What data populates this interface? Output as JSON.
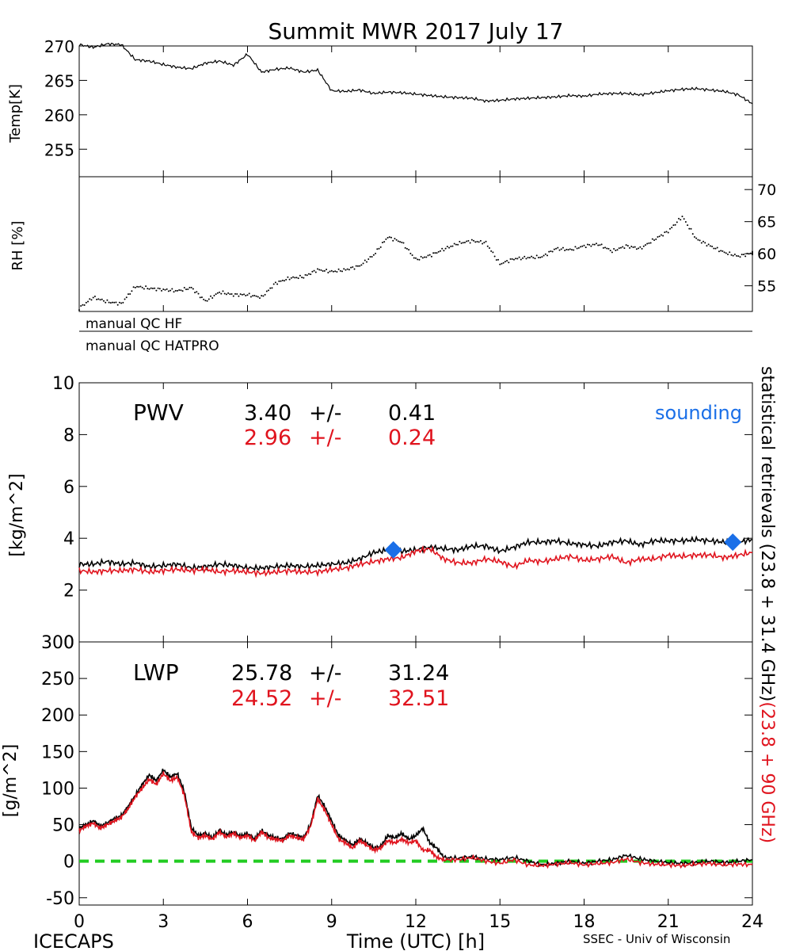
{
  "title": "Summit MWR 2017 July 17",
  "footer": {
    "left": "ICECAPS",
    "center": "Time (UTC) [h]",
    "right": "SSEC - Univ of Wisconsin"
  },
  "side_label": {
    "black_part": "statistical retrievals (23.8 + 31.4 GHz)",
    "red_part": "(23.8 + 90 GHz)"
  },
  "qc_flags": [
    "manual QC HF",
    "manual QC HATPRO"
  ],
  "colors": {
    "retrieval_23_31": "#000000",
    "retrieval_23_90": "#e0141e",
    "sounding": "#1a6fe8",
    "zero_line": "#22cc22"
  },
  "chart_data": [
    {
      "type": "line",
      "id": "temp",
      "ylabel": "Temp[K]",
      "xlim": [
        0,
        24
      ],
      "ylim": [
        251,
        270
      ],
      "yticks": [
        255,
        260,
        265,
        270
      ],
      "series": [
        {
          "color": "#000000",
          "x": [
            0,
            0.5,
            1,
            1.5,
            2,
            2.5,
            3,
            3.5,
            4,
            4.5,
            5,
            5.5,
            6,
            6.5,
            7,
            7.5,
            8,
            8.5,
            9,
            9.5,
            10,
            10.5,
            11,
            11.5,
            12,
            12.5,
            13,
            13.5,
            14,
            14.5,
            15,
            15.5,
            16,
            16.5,
            17,
            17.5,
            18,
            18.5,
            19,
            19.5,
            20,
            20.5,
            21,
            21.5,
            22,
            22.5,
            23,
            23.5,
            24
          ],
          "y": [
            270.2,
            269.8,
            270.3,
            270.2,
            268,
            267.8,
            267.3,
            266.9,
            266.7,
            267.5,
            267.8,
            267.2,
            268.8,
            266.2,
            266.6,
            266.8,
            266.2,
            266.5,
            263.5,
            263.4,
            263.6,
            263.1,
            263.3,
            263.2,
            263.0,
            262.8,
            262.6,
            262.5,
            262.4,
            262.0,
            262.1,
            262.3,
            262.4,
            262.5,
            262.6,
            262.8,
            262.7,
            263.0,
            263.1,
            263.1,
            262.9,
            263.2,
            263.5,
            263.7,
            263.8,
            263.6,
            263.4,
            262.9,
            261.6
          ]
        }
      ]
    },
    {
      "type": "scatter",
      "id": "rh",
      "ylabel": "RH [%]",
      "xlim": [
        0,
        24
      ],
      "ylim": [
        51,
        72
      ],
      "yticks": [
        55,
        60,
        65,
        70
      ],
      "series": [
        {
          "color": "#000000",
          "x": [
            0,
            0.5,
            1,
            1.5,
            2,
            2.5,
            3,
            3.5,
            4,
            4.5,
            5,
            5.5,
            6,
            6.5,
            7,
            7.5,
            8,
            8.5,
            9,
            9.5,
            10,
            10.5,
            11,
            11.5,
            12,
            12.5,
            13,
            13.5,
            14,
            14.5,
            15,
            15.5,
            16,
            16.5,
            17,
            17.5,
            18,
            18.5,
            19,
            19.5,
            20,
            20.5,
            21,
            21.5,
            22,
            22.5,
            23,
            23.5,
            24
          ],
          "y": [
            51.5,
            53.2,
            52.5,
            52.2,
            54.9,
            54.6,
            54.4,
            54.2,
            54.7,
            52.6,
            54.0,
            53.6,
            53.6,
            53.2,
            55.4,
            56.2,
            56.4,
            57.5,
            57.2,
            57.5,
            58.1,
            59.8,
            62.6,
            61.8,
            59.1,
            59.7,
            60.7,
            61.6,
            62.0,
            61.7,
            58.4,
            59.2,
            59.4,
            59.5,
            60.8,
            60.6,
            61.2,
            61.5,
            60.4,
            61.2,
            60.8,
            62.2,
            63.5,
            65.8,
            62.3,
            61.2,
            60.2,
            59.6,
            60.1
          ]
        }
      ]
    },
    {
      "type": "line",
      "id": "pwv",
      "ylabel": "[kg/m^2]",
      "xlim": [
        0,
        24
      ],
      "ylim": [
        0,
        10
      ],
      "yticks": [
        0,
        2,
        4,
        6,
        8,
        10
      ],
      "label": "PWV",
      "stats": [
        {
          "mean": "3.40",
          "pm": "+/-",
          "sd": "0.41",
          "color": "#000000"
        },
        {
          "mean": "2.96",
          "pm": "+/-",
          "sd": "0.24",
          "color": "#e0141e"
        }
      ],
      "sounding_label": "sounding",
      "sounding": {
        "x": [
          11.2,
          23.3
        ],
        "y": [
          3.55,
          3.85
        ],
        "color": "#1a6fe8"
      },
      "series": [
        {
          "color": "#000000",
          "x": [
            0,
            0.5,
            1,
            1.5,
            2,
            2.5,
            3,
            3.5,
            4,
            4.5,
            5,
            5.5,
            6,
            6.5,
            7,
            7.5,
            8,
            8.5,
            9,
            9.5,
            10,
            10.5,
            11,
            11.5,
            12,
            12.5,
            13,
            13.5,
            14,
            14.5,
            15,
            15.5,
            16,
            16.5,
            17,
            17.5,
            18,
            18.5,
            19,
            19.5,
            20,
            20.5,
            21,
            21.5,
            22,
            22.5,
            23,
            23.5,
            24
          ],
          "y": [
            3.0,
            3.0,
            3.1,
            3.0,
            3.05,
            2.9,
            2.95,
            3.0,
            2.85,
            2.9,
            3.0,
            2.95,
            2.85,
            2.85,
            2.9,
            2.95,
            2.9,
            2.95,
            3.0,
            3.05,
            3.2,
            3.45,
            3.55,
            3.5,
            3.55,
            3.65,
            3.6,
            3.55,
            3.7,
            3.7,
            3.5,
            3.65,
            3.85,
            3.85,
            3.9,
            3.8,
            3.75,
            3.7,
            3.85,
            3.9,
            3.75,
            3.9,
            3.9,
            3.9,
            3.95,
            3.9,
            3.85,
            3.85,
            3.95
          ]
        },
        {
          "color": "#e0141e",
          "x": [
            0,
            0.5,
            1,
            1.5,
            2,
            2.5,
            3,
            3.5,
            4,
            4.5,
            5,
            5.5,
            6,
            6.5,
            7,
            7.5,
            8,
            8.5,
            9,
            9.5,
            10,
            10.5,
            11,
            11.5,
            12,
            12.5,
            13,
            13.5,
            14,
            14.5,
            15,
            15.5,
            16,
            16.5,
            17,
            17.5,
            18,
            18.5,
            19,
            19.5,
            20,
            20.5,
            21,
            21.5,
            22,
            22.5,
            23,
            23.5,
            24
          ],
          "y": [
            2.75,
            2.7,
            2.75,
            2.75,
            2.8,
            2.7,
            2.75,
            2.8,
            2.75,
            2.8,
            2.7,
            2.75,
            2.7,
            2.65,
            2.7,
            2.75,
            2.7,
            2.7,
            2.8,
            2.85,
            3.0,
            3.1,
            3.2,
            3.25,
            3.5,
            3.6,
            3.2,
            3.05,
            3.05,
            3.2,
            3.1,
            2.9,
            3.15,
            3.1,
            3.2,
            3.3,
            3.15,
            3.2,
            3.3,
            3.05,
            3.2,
            3.2,
            3.35,
            3.3,
            3.35,
            3.35,
            3.25,
            3.35,
            3.45
          ]
        }
      ]
    },
    {
      "type": "line",
      "id": "lwp",
      "ylabel": "[g/m^2]",
      "xlim": [
        0,
        24
      ],
      "ylim": [
        -60,
        300
      ],
      "yticks": [
        -50,
        0,
        50,
        100,
        150,
        200,
        250,
        300
      ],
      "xticks": [
        0,
        3,
        6,
        9,
        12,
        15,
        18,
        21,
        24
      ],
      "label": "LWP",
      "stats": [
        {
          "mean": "25.78",
          "pm": "+/-",
          "sd": "31.24",
          "color": "#000000"
        },
        {
          "mean": "24.52",
          "pm": "+/-",
          "sd": "32.51",
          "color": "#e0141e"
        }
      ],
      "zero_line": 0,
      "series": [
        {
          "color": "#000000",
          "x": [
            0,
            0.25,
            0.5,
            0.75,
            1,
            1.25,
            1.5,
            1.75,
            2,
            2.25,
            2.5,
            2.75,
            3,
            3.25,
            3.5,
            3.75,
            4,
            4.25,
            4.5,
            4.75,
            5,
            5.25,
            5.5,
            5.75,
            6,
            6.25,
            6.5,
            6.75,
            7,
            7.25,
            7.5,
            7.75,
            8,
            8.25,
            8.5,
            8.75,
            9,
            9.25,
            9.5,
            9.75,
            10,
            10.25,
            10.5,
            10.75,
            11,
            11.25,
            11.5,
            11.75,
            12,
            12.25,
            12.5,
            12.75,
            13,
            13.5,
            14,
            14.5,
            15,
            15.5,
            16,
            16.5,
            17,
            17.5,
            18,
            18.5,
            19,
            19.5,
            20,
            20.5,
            21,
            21.5,
            22,
            22.5,
            23,
            23.5,
            24
          ],
          "y": [
            45,
            50,
            55,
            48,
            52,
            58,
            62,
            75,
            90,
            105,
            118,
            110,
            125,
            115,
            120,
            95,
            45,
            35,
            38,
            32,
            42,
            36,
            40,
            34,
            38,
            30,
            42,
            35,
            32,
            30,
            38,
            35,
            32,
            50,
            90,
            75,
            55,
            35,
            28,
            22,
            30,
            25,
            18,
            20,
            35,
            32,
            38,
            30,
            35,
            45,
            25,
            18,
            5,
            4,
            6,
            3,
            2,
            5,
            0,
            -5,
            -3,
            0,
            -3,
            0,
            2,
            8,
            3,
            0,
            -2,
            -3,
            -2,
            0,
            -2,
            0,
            2
          ]
        },
        {
          "color": "#e0141e",
          "x": [
            0,
            0.25,
            0.5,
            0.75,
            1,
            1.25,
            1.5,
            1.75,
            2,
            2.25,
            2.5,
            2.75,
            3,
            3.25,
            3.5,
            3.75,
            4,
            4.25,
            4.5,
            4.75,
            5,
            5.25,
            5.5,
            5.75,
            6,
            6.25,
            6.5,
            6.75,
            7,
            7.25,
            7.5,
            7.75,
            8,
            8.25,
            8.5,
            8.75,
            9,
            9.25,
            9.5,
            9.75,
            10,
            10.25,
            10.5,
            10.75,
            11,
            11.25,
            11.5,
            11.75,
            12,
            12.25,
            12.5,
            12.75,
            13,
            13.5,
            14,
            14.5,
            15,
            15.5,
            16,
            16.5,
            17,
            17.5,
            18,
            18.5,
            19,
            19.5,
            20,
            20.5,
            21,
            21.5,
            22,
            22.5,
            23,
            23.5,
            24
          ],
          "y": [
            42,
            48,
            52,
            45,
            50,
            55,
            60,
            72,
            88,
            100,
            112,
            105,
            120,
            110,
            115,
            90,
            40,
            32,
            35,
            30,
            40,
            33,
            38,
            32,
            35,
            28,
            40,
            32,
            30,
            28,
            35,
            32,
            30,
            48,
            85,
            70,
            50,
            30,
            25,
            18,
            28,
            22,
            15,
            18,
            28,
            25,
            30,
            25,
            28,
            15,
            15,
            5,
            2,
            2,
            5,
            0,
            -3,
            2,
            -5,
            -6,
            -4,
            -2,
            -5,
            -3,
            -2,
            3,
            -2,
            -4,
            -5,
            -6,
            -4,
            -3,
            -5,
            -4,
            -5
          ]
        }
      ]
    }
  ]
}
